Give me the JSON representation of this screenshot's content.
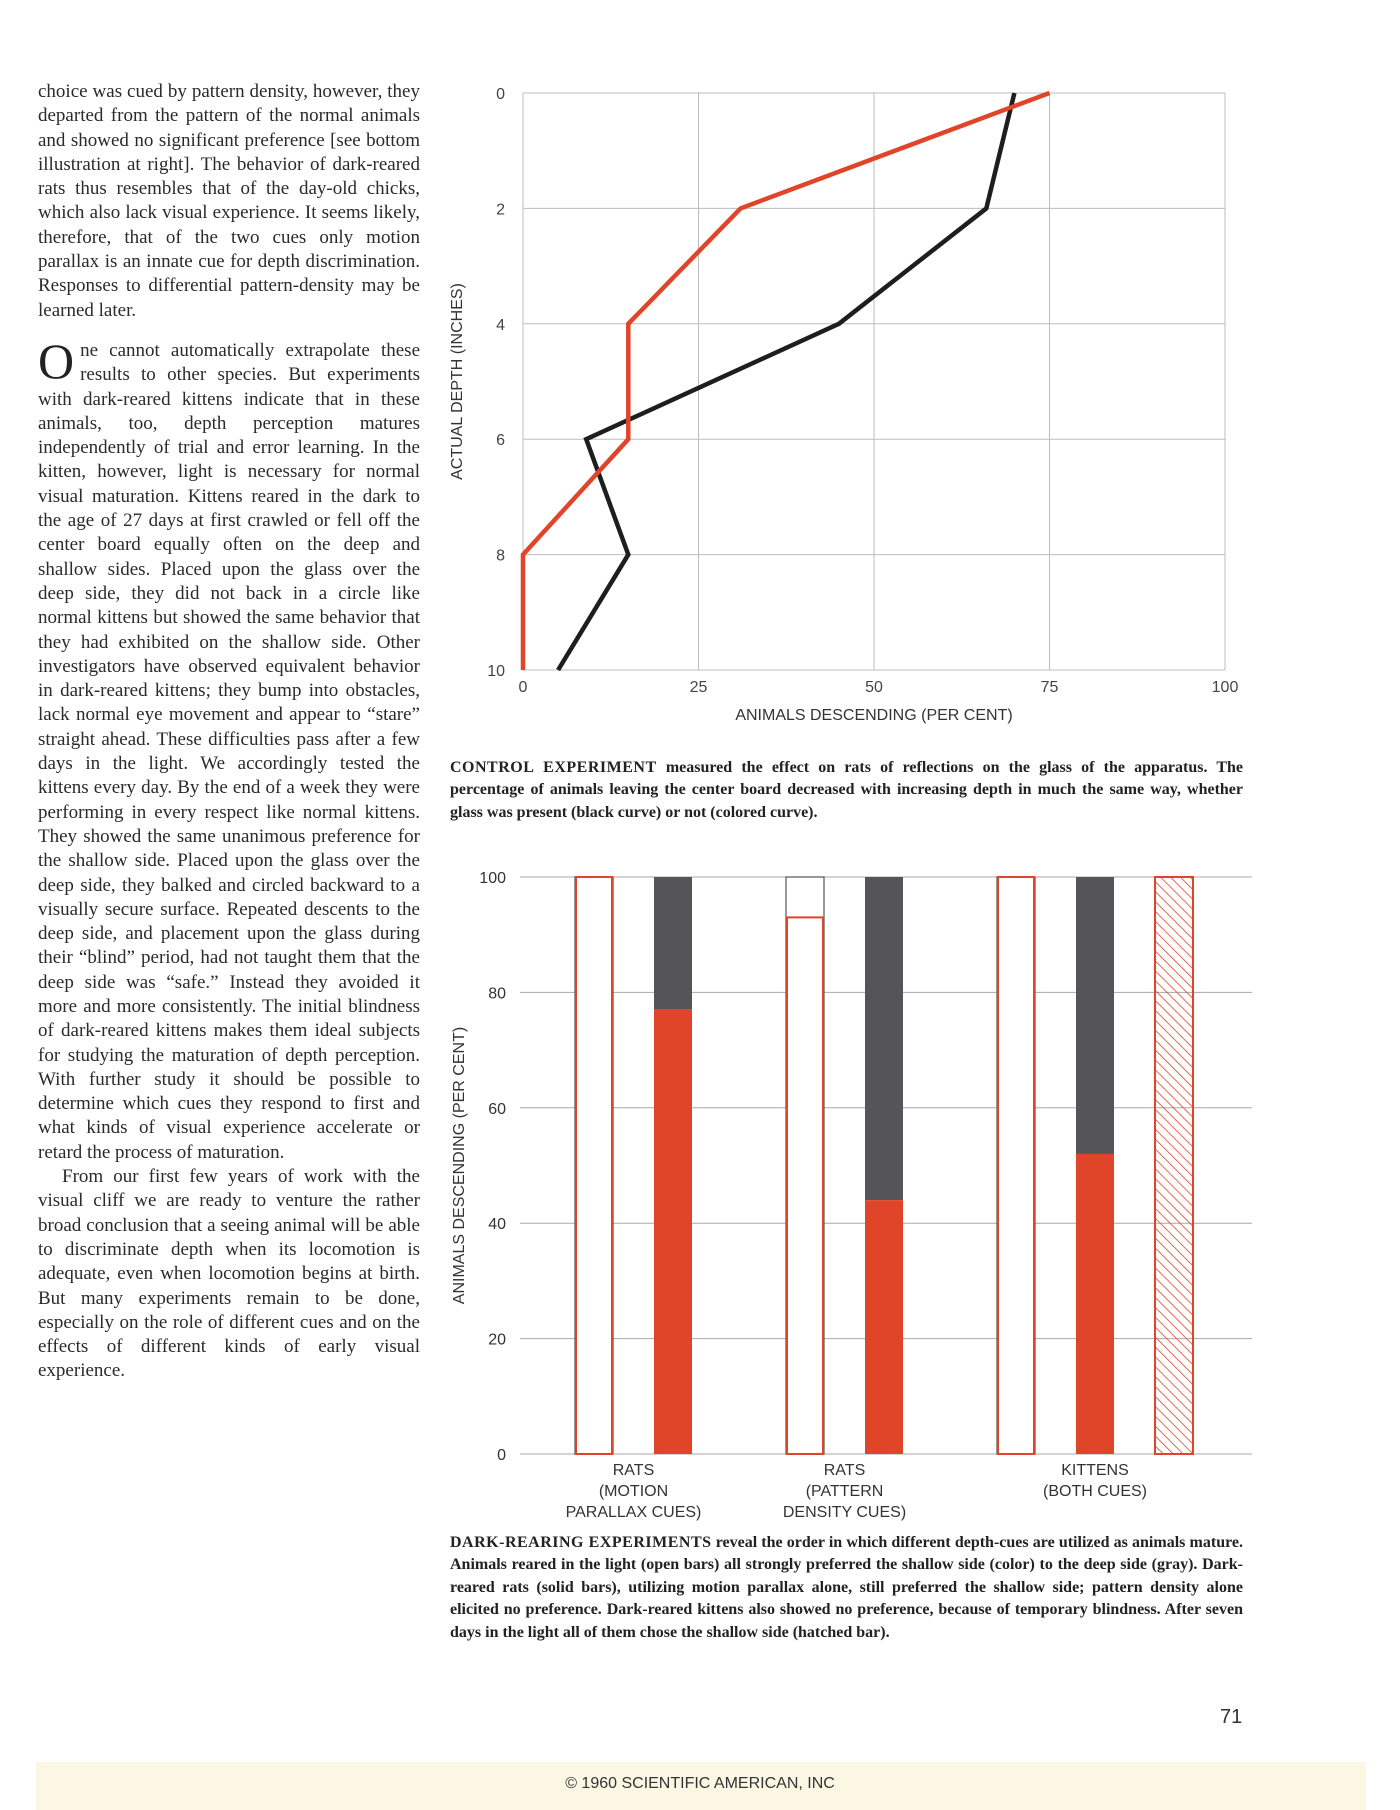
{
  "body_text": {
    "p1": "choice was cued by pattern density, however, they departed from the pattern of the normal animals and showed no significant preference [see bottom illustration at right]. The behavior of dark-reared rats thus resembles that of the day-old chicks, which also lack visual experience. It seems likely, therefore, that of the two cues only motion parallax is an innate cue for depth discrimination. Responses to differential pattern-density may be learned later.",
    "p2_dropcap": "O",
    "p2": "ne cannot automatically extrapolate these results to other species. But experiments with dark-reared kittens indicate that in these animals, too, depth perception matures independently of trial and error learning. In the kitten, however, light is necessary for normal visual maturation. Kittens reared in the dark to the age of 27 days at first crawled or fell off the center board equally often on the deep and shallow sides. Placed upon the glass over the deep side, they did not back in a circle like normal kittens but showed the same behavior that they had exhibited on the shallow side. Other investigators have observed equivalent behavior in dark-reared kittens; they bump into obstacles, lack normal eye movement and appear to “stare” straight ahead. These difficulties pass after a few days in the light. We accordingly tested the kittens every day. By the end of a week they were performing in every respect like normal kittens. They showed the same unanimous preference for the shallow side. Placed upon the glass over the deep side, they balked and circled backward to a visually secure surface. Repeated descents to the deep side, and placement upon the glass during their “blind” period, had not taught them that the deep side was “safe.” Instead they avoided it more and more consistently. The initial blindness of dark-reared kittens makes them ideal subjects for studying the maturation of depth perception. With further study it should be possible to determine which cues they respond to first and what kinds of visual experience accelerate or retard the process of maturation.",
    "p3": "From our first few years of work with the visual cliff we are ready to venture the rather broad conclusion that a seeing animal will be able to discriminate depth when its locomotion is adequate, even when locomotion begins at birth. But many experiments remain to be done, especially on the role of different cues and on the effects of different kinds of early visual experience."
  },
  "captions": {
    "control_head": "CONTROL EXPERIMENT",
    "control_text": "measured the effect on rats of reflections on the glass of the apparatus. The percentage of animals leaving the center board decreased with increasing depth in much the same way, whether glass was present (black curve) or not (colored curve).",
    "dark_head": "DARK-REARING EXPERIMENTS",
    "dark_text": "reveal the order in which different depth-cues are utilized as animals mature. Animals reared in the light (open bars) all strongly preferred the shallow side (color) to the deep side (gray). Dark-reared rats (solid bars), utilizing motion parallax alone, still preferred the shallow side; pattern density alone elicited no preference. Dark-reared kittens also showed no preference, because of temporary blindness. After seven days in the light all of them chose the shallow side (hatched bar)."
  },
  "page_number": "71",
  "copyright": "© 1960 SCIENTIFIC AMERICAN, INC",
  "colors": {
    "accent": "#e0452a",
    "gray": "#555558",
    "black": "#1e1e1e",
    "grid": "#bdbdbd"
  },
  "chart_data": [
    {
      "type": "line",
      "title": "",
      "xlabel": "ANIMALS DESCENDING (PER CENT)",
      "ylabel": "ACTUAL DEPTH (INCHES)",
      "xlim": [
        0,
        100
      ],
      "ylim": [
        10,
        0
      ],
      "x_ticks": [
        "0",
        "25",
        "50",
        "75",
        "100"
      ],
      "y_ticks": [
        "0",
        "2",
        "4",
        "6",
        "8",
        "10"
      ],
      "grid": true,
      "series": [
        {
          "color": "black",
          "points": [
            [
              70,
              0
            ],
            [
              66,
              2
            ],
            [
              45,
              4
            ],
            [
              9,
              6
            ],
            [
              15,
              8
            ],
            [
              5,
              10
            ]
          ]
        },
        {
          "color": "colored",
          "points": [
            [
              75,
              0
            ],
            [
              31,
              2
            ],
            [
              15,
              4
            ],
            [
              15,
              6
            ],
            [
              0,
              8
            ],
            [
              0,
              10
            ]
          ]
        }
      ]
    },
    {
      "type": "bar",
      "title": "",
      "ylabel": "ANIMALS DESCENDING (PER CENT)",
      "ylim": [
        0,
        100
      ],
      "y_ticks": [
        "0",
        "20",
        "40",
        "60",
        "80",
        "100"
      ],
      "grid": true,
      "groups": [
        {
          "label": [
            "RATS",
            "(MOTION",
            "PARALLAX CUES)"
          ],
          "bars": [
            {
              "style": "open",
              "shallow": 100,
              "deep": 0
            },
            {
              "style": "solid",
              "shallow": 77,
              "deep": 23
            }
          ]
        },
        {
          "label": [
            "RATS",
            "(PATTERN",
            "DENSITY CUES)"
          ],
          "bars": [
            {
              "style": "open",
              "shallow": 93,
              "deep": 7
            },
            {
              "style": "solid",
              "shallow": 44,
              "deep": 56
            }
          ]
        },
        {
          "label": [
            "KITTENS",
            "(BOTH CUES)"
          ],
          "bars": [
            {
              "style": "open",
              "shallow": 100,
              "deep": 0
            },
            {
              "style": "solid",
              "shallow": 52,
              "deep": 48
            },
            {
              "style": "hatched",
              "shallow": 100,
              "deep": 0
            }
          ]
        }
      ]
    }
  ]
}
